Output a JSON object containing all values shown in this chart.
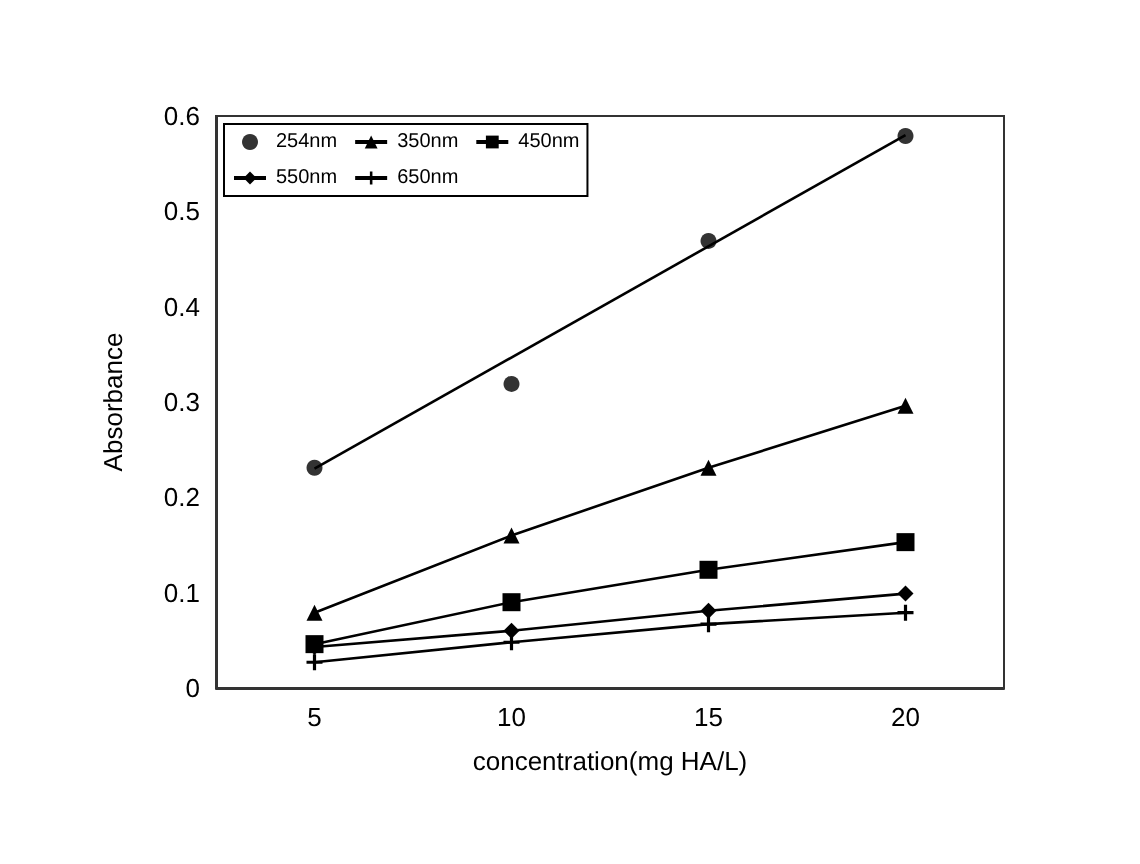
{
  "chart_data": {
    "type": "line",
    "xlabel": "concentration(mg HA/L)",
    "ylabel": "Absorbance",
    "x": [
      5,
      10,
      15,
      20
    ],
    "xlim": [
      2.5,
      22.5
    ],
    "xticks": [
      5,
      10,
      15,
      20
    ],
    "ylim": [
      0,
      0.6
    ],
    "yticks": [
      0,
      0.1,
      0.2,
      0.3,
      0.4,
      0.5,
      0.6
    ],
    "grid": false,
    "legend": "top left",
    "series": [
      {
        "name": "254nm",
        "type": "scatter",
        "marker": "circle",
        "color": "#000000",
        "values": [
          0.231,
          0.319,
          0.469,
          0.579
        ]
      },
      {
        "marker": "none",
        "color": "#000000",
        "x": [
          5,
          20
        ],
        "values": [
          0.23,
          0.58
        ]
      },
      {
        "name": "350nm",
        "marker": "triangle",
        "color": "#000000",
        "values": [
          0.079,
          0.16,
          0.231,
          0.296
        ]
      },
      {
        "name": "450nm",
        "marker": "square",
        "color": "#000000",
        "values": [
          0.046,
          0.09,
          0.124,
          0.153
        ]
      },
      {
        "name": "550nm",
        "marker": "diamond",
        "color": "#000000",
        "values": [
          0.043,
          0.06,
          0.081,
          0.099
        ]
      },
      {
        "name": "650nm",
        "marker": "cross",
        "color": "#000000",
        "values": [
          0.027,
          0.048,
          0.067,
          0.079
        ]
      }
    ]
  }
}
